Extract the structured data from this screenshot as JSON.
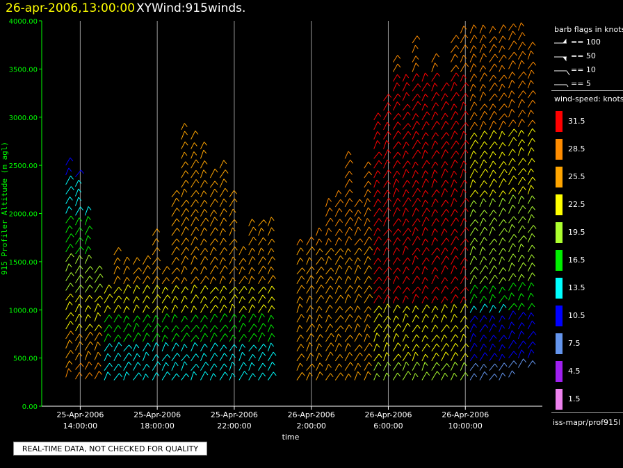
{
  "header": {
    "date": "26-apr-2006,13:00:00",
    "title": "XYWind:915winds."
  },
  "notice": "REAL-TIME DATA, NOT CHECKED FOR QUALITY",
  "legend": {
    "barb_title": "barb flags in knots",
    "barb_items": [
      "== 100",
      "== 50",
      "== 10",
      "== 5"
    ],
    "speed_title": "wind-speed: knots",
    "speed_bins": [
      {
        "label": "31.5",
        "color": "#ff0000"
      },
      {
        "label": "28.5",
        "color": "#ff8c00"
      },
      {
        "label": "25.5",
        "color": "#ffa500"
      },
      {
        "label": "22.5",
        "color": "#ffff00"
      },
      {
        "label": "19.5",
        "color": "#adff2f"
      },
      {
        "label": "16.5",
        "color": "#00ee00"
      },
      {
        "label": "13.5",
        "color": "#00ffff"
      },
      {
        "label": "10.5",
        "color": "#0000ff"
      },
      {
        "label": "7.5",
        "color": "#6495ed"
      },
      {
        "label": "4.5",
        "color": "#a020f0"
      },
      {
        "label": "1.5",
        "color": "#ee82ee"
      }
    ],
    "source": "iss-mapr/prof915l"
  },
  "chart_data": {
    "type": "wind-barb profile",
    "ylabel": "915 Profiler Altitude (m agl)",
    "xlabel": "time",
    "ylim": [
      0,
      4000
    ],
    "yticks": [
      "0.00",
      "500.00",
      "1000.00",
      "1500.00",
      "2000.00",
      "2500.00",
      "3000.00",
      "3500.00",
      "4000.00"
    ],
    "xticks": [
      {
        "date": "25-Apr-2006",
        "time": "14:00:00"
      },
      {
        "date": "25-Apr-2006",
        "time": "18:00:00"
      },
      {
        "date": "25-Apr-2006",
        "time": "22:00:00"
      },
      {
        "date": "26-Apr-2006",
        "time": "2:00:00"
      },
      {
        "date": "26-Apr-2006",
        "time": "6:00:00"
      },
      {
        "date": "26-Apr-2006",
        "time": "10:00:00"
      }
    ],
    "axis_color": "#00ff00",
    "grid": "vertical lines at major time ticks",
    "profiles": [
      {
        "hour": 13.25,
        "top": 2500,
        "bottom": 300
      },
      {
        "hour": 13.75,
        "top": 2450,
        "bottom": 280
      },
      {
        "hour": 14.25,
        "top": 2000,
        "bottom": 280
      },
      {
        "hour": 14.75,
        "top": 1450,
        "bottom": 280
      },
      {
        "hour": 15.25,
        "top": 1250,
        "bottom": 270
      },
      {
        "hour": 15.75,
        "top": 1600,
        "bottom": 270
      },
      {
        "hour": 16.25,
        "top": 1550,
        "bottom": 270
      },
      {
        "hour": 16.75,
        "top": 1500,
        "bottom": 270
      },
      {
        "hour": 17.25,
        "top": 1550,
        "bottom": 270
      },
      {
        "hour": 17.75,
        "top": 1800,
        "bottom": 270
      },
      {
        "hour": 18.25,
        "top": 1400,
        "bottom": 270
      },
      {
        "hour": 18.75,
        "top": 2250,
        "bottom": 270
      },
      {
        "hour": 19.25,
        "top": 2900,
        "bottom": 270
      },
      {
        "hour": 19.75,
        "top": 2850,
        "bottom": 270
      },
      {
        "hour": 20.25,
        "top": 2750,
        "bottom": 270
      },
      {
        "hour": 20.75,
        "top": 2450,
        "bottom": 270
      },
      {
        "hour": 21.25,
        "top": 2550,
        "bottom": 270
      },
      {
        "hour": 21.75,
        "top": 2200,
        "bottom": 270
      },
      {
        "hour": 22.25,
        "top": 1650,
        "bottom": 270
      },
      {
        "hour": 22.75,
        "top": 1950,
        "bottom": 270
      },
      {
        "hour": 23.25,
        "top": 1900,
        "bottom": 270
      },
      {
        "hour": 23.75,
        "top": 1950,
        "bottom": 270
      },
      {
        "hour": 25.25,
        "top": 1700,
        "bottom": 270
      },
      {
        "hour": 25.75,
        "top": 1700,
        "bottom": 270
      },
      {
        "hour": 26.25,
        "top": 1800,
        "bottom": 270
      },
      {
        "hour": 26.75,
        "top": 2100,
        "bottom": 270
      },
      {
        "hour": 27.25,
        "top": 2250,
        "bottom": 270
      },
      {
        "hour": 27.75,
        "top": 2600,
        "bottom": 270
      },
      {
        "hour": 28.25,
        "top": 2100,
        "bottom": 270
      },
      {
        "hour": 28.75,
        "top": 2500,
        "bottom": 270
      },
      {
        "hour": 29.25,
        "top": 3050,
        "bottom": 270
      },
      {
        "hour": 29.75,
        "top": 3200,
        "bottom": 270
      },
      {
        "hour": 30.25,
        "top": 3600,
        "bottom": 270
      },
      {
        "hour": 30.75,
        "top": 3400,
        "bottom": 270
      },
      {
        "hour": 31.25,
        "top": 3850,
        "bottom": 270
      },
      {
        "hour": 31.75,
        "top": 3450,
        "bottom": 270
      },
      {
        "hour": 32.25,
        "top": 3650,
        "bottom": 270
      },
      {
        "hour": 32.75,
        "top": 3300,
        "bottom": 270
      },
      {
        "hour": 33.25,
        "top": 3850,
        "bottom": 270
      },
      {
        "hour": 33.75,
        "top": 3950,
        "bottom": 270
      },
      {
        "hour": 34.25,
        "top": 3950,
        "bottom": 270
      },
      {
        "hour": 34.75,
        "top": 3950,
        "bottom": 270
      },
      {
        "hour": 35.25,
        "top": 3950,
        "bottom": 270
      },
      {
        "hour": 35.75,
        "top": 3950,
        "bottom": 270
      },
      {
        "hour": 36.25,
        "top": 3950,
        "bottom": 300
      },
      {
        "hour": 36.75,
        "top": 3950,
        "bottom": 400
      },
      {
        "hour": 37.25,
        "top": 3750,
        "bottom": 400
      }
    ]
  }
}
